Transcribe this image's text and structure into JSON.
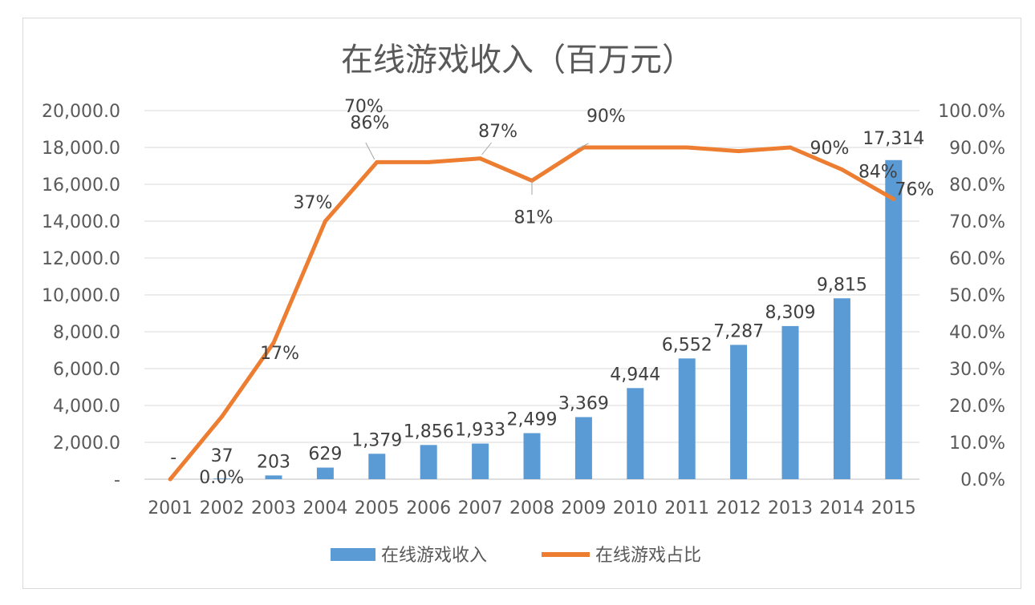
{
  "chart_data": {
    "type": "bar",
    "title": "在线游戏收入（百万元）",
    "categories": [
      "2001",
      "2002",
      "2003",
      "2004",
      "2005",
      "2006",
      "2007",
      "2008",
      "2009",
      "2010",
      "2011",
      "2012",
      "2013",
      "2014",
      "2015"
    ],
    "series": [
      {
        "name": "在线游戏收入",
        "type": "bar",
        "axis": "left",
        "color": "#5b9bd5",
        "values": [
          0,
          37,
          203,
          629,
          1379,
          1856,
          1933,
          2499,
          3369,
          4944,
          6552,
          7287,
          8309,
          9815,
          17314
        ],
        "labels": [
          "-",
          "37",
          "203",
          "629",
          "1,379",
          "1,856",
          "1,933",
          "2,499",
          "3,369",
          "4,944",
          "6,552",
          "7,287",
          "8,309",
          "9,815",
          "17,314"
        ]
      },
      {
        "name": "在线游戏占比",
        "type": "line",
        "axis": "right",
        "color": "#ed7d31",
        "values": [
          0.0,
          17,
          37,
          70,
          86,
          86,
          87,
          81,
          90,
          90,
          90,
          89,
          90,
          84,
          76
        ],
        "labels": [
          "0.0%",
          "17%",
          "37%",
          "70%",
          "86%",
          "",
          "87%",
          "81%",
          "90%",
          "",
          "",
          "",
          "90%",
          "84%",
          "76%"
        ]
      }
    ],
    "y_left": {
      "ylim": [
        0,
        20000
      ],
      "tick_labels": [
        "-",
        "2,000.0",
        "4,000.0",
        "6,000.0",
        "8,000.0",
        "10,000.0",
        "12,000.0",
        "14,000.0",
        "16,000.0",
        "18,000.0",
        "20,000.0"
      ]
    },
    "y_right": {
      "ylim": [
        0,
        100
      ],
      "tick_labels": [
        "0.0%",
        "10.0%",
        "20.0%",
        "30.0%",
        "40.0%",
        "50.0%",
        "60.0%",
        "70.0%",
        "80.0%",
        "90.0%",
        "100.0%"
      ]
    },
    "grid": true,
    "legend_position": "bottom"
  }
}
